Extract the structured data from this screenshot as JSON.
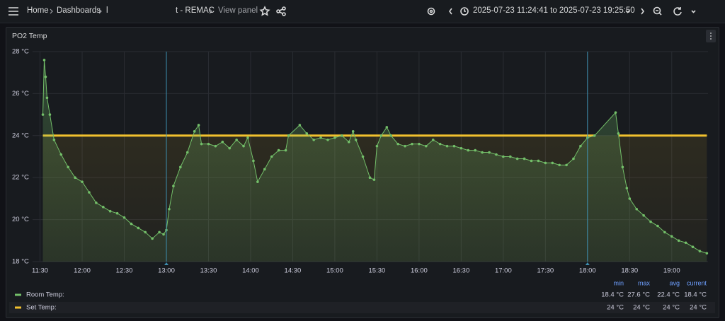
{
  "header": {
    "breadcrumbs": [
      "Home",
      "Dashboards",
      "l",
      "t - REMAC",
      "View panel"
    ],
    "time_range": "2025-07-23 11:24:41 to 2025-07-23 19:25:50"
  },
  "chart_data": {
    "type": "line",
    "title": "PO2 Temp",
    "x": [
      "11:32",
      "11:33",
      "11:34",
      "11:35",
      "11:37",
      "11:40",
      "11:45",
      "11:50",
      "11:55",
      "12:00",
      "12:05",
      "12:10",
      "12:15",
      "12:20",
      "12:25",
      "12:30",
      "12:35",
      "12:40",
      "12:45",
      "12:50",
      "12:55",
      "12:58",
      "13:00",
      "13:02",
      "13:05",
      "13:10",
      "13:15",
      "13:20",
      "13:23",
      "13:25",
      "13:30",
      "13:35",
      "13:40",
      "13:45",
      "13:50",
      "13:55",
      "13:58",
      "14:02",
      "14:05",
      "14:10",
      "14:15",
      "14:20",
      "14:25",
      "14:27",
      "14:35",
      "14:40",
      "14:45",
      "14:50",
      "14:55",
      "15:00",
      "15:05",
      "15:10",
      "15:13",
      "15:15",
      "15:20",
      "15:25",
      "15:28",
      "15:30",
      "15:33",
      "15:37",
      "15:40",
      "15:45",
      "15:50",
      "15:55",
      "16:00",
      "16:05",
      "16:10",
      "16:15",
      "16:20",
      "16:25",
      "16:30",
      "16:35",
      "16:40",
      "16:45",
      "16:50",
      "16:55",
      "17:00",
      "17:05",
      "17:10",
      "17:15",
      "17:20",
      "17:25",
      "17:30",
      "17:35",
      "17:40",
      "17:45",
      "17:50",
      "17:55",
      "18:00",
      "18:05",
      "18:20",
      "18:22",
      "18:25",
      "18:28",
      "18:30",
      "18:35",
      "18:40",
      "18:45",
      "18:50",
      "18:55",
      "19:00",
      "19:05",
      "19:10",
      "19:15",
      "19:20",
      "19:25"
    ],
    "series": [
      {
        "name": "Room Temp:",
        "color": "#73bf69",
        "points": true,
        "values": [
          25.0,
          27.6,
          26.8,
          25.8,
          25.0,
          23.8,
          23.1,
          22.5,
          22.0,
          21.8,
          21.3,
          20.8,
          20.6,
          20.4,
          20.3,
          20.1,
          19.8,
          19.6,
          19.4,
          19.1,
          19.4,
          19.3,
          19.5,
          20.5,
          21.6,
          22.5,
          23.2,
          24.2,
          24.5,
          23.6,
          23.6,
          23.5,
          23.7,
          23.4,
          23.8,
          23.5,
          23.9,
          22.8,
          21.8,
          22.4,
          23.0,
          23.3,
          23.3,
          24.0,
          24.5,
          24.1,
          23.8,
          23.9,
          23.8,
          23.9,
          24.0,
          23.7,
          24.2,
          23.8,
          23.0,
          22.0,
          21.9,
          23.5,
          24.0,
          24.4,
          24.0,
          23.6,
          23.5,
          23.6,
          23.6,
          23.5,
          23.8,
          23.6,
          23.5,
          23.5,
          23.4,
          23.3,
          23.3,
          23.2,
          23.2,
          23.1,
          23.0,
          23.0,
          22.9,
          22.9,
          22.8,
          22.8,
          22.7,
          22.7,
          22.6,
          22.6,
          22.9,
          23.5,
          23.9,
          24.0,
          25.1,
          24.1,
          22.5,
          21.5,
          21.0,
          20.5,
          20.2,
          19.9,
          19.7,
          19.4,
          19.2,
          19.0,
          18.9,
          18.7,
          18.5,
          18.4
        ],
        "stats": {
          "values": [
            18.4,
            27.6,
            22.4,
            18.4
          ],
          "labels": [
            "18.4 °C",
            "27.6 °C",
            "22.4 °C",
            "18.4 °C"
          ]
        }
      },
      {
        "name": "Set Temp:",
        "color": "#f2c12e",
        "points": false,
        "values": [
          24,
          24,
          24,
          24,
          24,
          24,
          24,
          24,
          24,
          24,
          24,
          24,
          24,
          24,
          24,
          24,
          24,
          24,
          24,
          24,
          24,
          24,
          24,
          24,
          24,
          24,
          24,
          24,
          24,
          24,
          24,
          24,
          24,
          24,
          24,
          24,
          24,
          24,
          24,
          24,
          24,
          24,
          24,
          24,
          24,
          24,
          24,
          24,
          24,
          24,
          24,
          24,
          24,
          24,
          24,
          24,
          24,
          24,
          24,
          24,
          24,
          24,
          24,
          24,
          24,
          24,
          24,
          24,
          24,
          24,
          24,
          24,
          24,
          24,
          24,
          24,
          24,
          24,
          24,
          24,
          24,
          24,
          24,
          24,
          24,
          24,
          24,
          24,
          24,
          24,
          null,
          24,
          24,
          24,
          24,
          24,
          24,
          24,
          24,
          24,
          24,
          24,
          24,
          24,
          24,
          24
        ],
        "stats": {
          "values": [
            24,
            24,
            24,
            24
          ],
          "labels": [
            "24 °C",
            "24 °C",
            "24 °C",
            "24 °C"
          ]
        }
      }
    ],
    "stat_columns": [
      "min",
      "max",
      "avg",
      "current"
    ],
    "xlim": [
      "11:24:41",
      "19:25:50"
    ],
    "xticks": [
      "11:30",
      "12:00",
      "12:30",
      "13:00",
      "13:30",
      "14:00",
      "14:30",
      "15:00",
      "15:30",
      "16:00",
      "16:30",
      "17:00",
      "17:30",
      "18:00",
      "18:30",
      "19:00"
    ],
    "ylim": [
      18,
      28
    ],
    "yticks": [
      {
        "value": 18,
        "label": "18 °C"
      },
      {
        "value": 20,
        "label": "20 °C"
      },
      {
        "value": 22,
        "label": "22 °C"
      },
      {
        "value": 24,
        "label": "24 °C"
      },
      {
        "value": 26,
        "label": "26 °C"
      },
      {
        "value": 28,
        "label": "28 °C"
      }
    ],
    "annotations": [
      "13:00",
      "18:00"
    ],
    "annotation_color": "#3d8fb0",
    "grid": true
  }
}
